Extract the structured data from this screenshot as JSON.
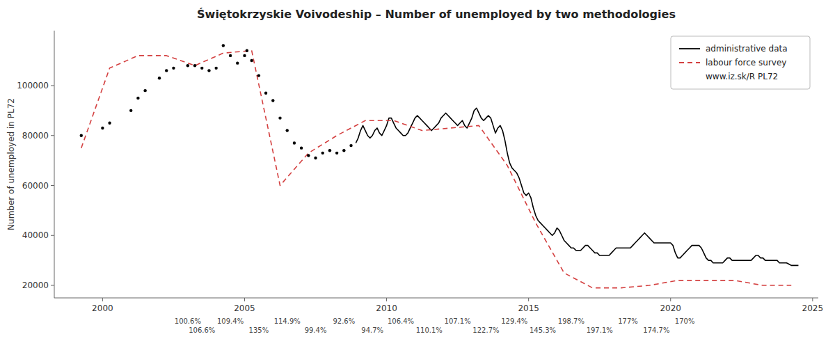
{
  "chart_data": {
    "type": "line",
    "title": "Świętokrzyskie Voivodeship – Number of unemployed  by two methodologies",
    "y_label": "Number of unemployed in PL72",
    "xlim": [
      1998.3,
      2025.2
    ],
    "ylim": [
      15000,
      122000
    ],
    "xticks": [
      2000,
      2005,
      2010,
      2015,
      2020,
      2025
    ],
    "yticks": [
      20000,
      40000,
      60000,
      80000,
      100000
    ],
    "grid": false,
    "legend": "upper right",
    "legend_note": "www.iz.sk/R PL72",
    "series": [
      {
        "type": "scatter",
        "marker": "circle",
        "color": "black",
        "x": [
          1999.25,
          2000.0,
          2000.25,
          2001.0,
          2001.25,
          2001.5,
          2002.0,
          2002.25,
          2002.5,
          2003.0,
          2003.25,
          2003.5,
          2003.75,
          2004.0,
          2004.25,
          2004.5,
          2004.75,
          2005.0,
          2005.083,
          2005.25,
          2005.5,
          2005.75,
          2006.0,
          2006.25,
          2006.5,
          2006.75,
          2007.0,
          2007.25,
          2007.5,
          2007.75,
          2008.0,
          2008.25,
          2008.5,
          2008.75
        ],
        "values": [
          80000,
          83000,
          85000,
          90000,
          95000,
          98000,
          103000,
          106000,
          107000,
          108000,
          108000,
          107000,
          106000,
          107000,
          116000,
          112000,
          109000,
          112000,
          114000,
          110000,
          104000,
          97000,
          94000,
          87000,
          82000,
          77000,
          75000,
          72000,
          71000,
          73000,
          74000,
          73000,
          74000,
          76000
        ]
      },
      {
        "type": "line",
        "name": "administrative data",
        "color": "black",
        "line_style": "solid",
        "x": [
          2008.917,
          2009.0,
          2009.083,
          2009.167,
          2009.25,
          2009.333,
          2009.417,
          2009.5,
          2009.583,
          2009.667,
          2009.75,
          2009.833,
          2009.917,
          2010.0,
          2010.083,
          2010.167,
          2010.25,
          2010.333,
          2010.417,
          2010.5,
          2010.583,
          2010.667,
          2010.75,
          2010.833,
          2010.917,
          2011.0,
          2011.083,
          2011.167,
          2011.25,
          2011.333,
          2011.417,
          2011.5,
          2011.583,
          2011.667,
          2011.75,
          2011.833,
          2011.917,
          2012.0,
          2012.083,
          2012.167,
          2012.25,
          2012.333,
          2012.417,
          2012.5,
          2012.583,
          2012.667,
          2012.75,
          2012.833,
          2012.917,
          2013.0,
          2013.083,
          2013.167,
          2013.25,
          2013.333,
          2013.417,
          2013.5,
          2013.583,
          2013.667,
          2013.75,
          2013.833,
          2013.917,
          2014.0,
          2014.083,
          2014.167,
          2014.25,
          2014.333,
          2014.417,
          2014.5,
          2014.583,
          2014.667,
          2014.75,
          2014.833,
          2014.917,
          2015.0,
          2015.083,
          2015.167,
          2015.25,
          2015.333,
          2015.417,
          2015.5,
          2015.583,
          2015.667,
          2015.75,
          2015.833,
          2015.917,
          2016.0,
          2016.083,
          2016.167,
          2016.25,
          2016.333,
          2016.417,
          2016.5,
          2016.583,
          2016.667,
          2016.75,
          2016.833,
          2016.917,
          2017.0,
          2017.083,
          2017.167,
          2017.25,
          2017.333,
          2017.417,
          2017.5,
          2017.583,
          2017.667,
          2017.75,
          2017.833,
          2017.917,
          2018.0,
          2018.083,
          2018.167,
          2018.25,
          2018.333,
          2018.417,
          2018.5,
          2018.583,
          2018.667,
          2018.75,
          2018.833,
          2018.917,
          2019.0,
          2019.083,
          2019.167,
          2019.25,
          2019.333,
          2019.417,
          2019.5,
          2019.583,
          2019.667,
          2019.75,
          2019.833,
          2019.917,
          2020.0,
          2020.083,
          2020.167,
          2020.25,
          2020.333,
          2020.417,
          2020.5,
          2020.583,
          2020.667,
          2020.75,
          2020.833,
          2020.917,
          2021.0,
          2021.083,
          2021.167,
          2021.25,
          2021.333,
          2021.417,
          2021.5,
          2021.583,
          2021.667,
          2021.75,
          2021.833,
          2021.917,
          2022.0,
          2022.083,
          2022.167,
          2022.25,
          2022.333,
          2022.417,
          2022.5,
          2022.583,
          2022.667,
          2022.75,
          2022.833,
          2022.917,
          2023.0,
          2023.083,
          2023.167,
          2023.25,
          2023.333,
          2023.417,
          2023.5,
          2023.583,
          2023.667,
          2023.75,
          2023.833,
          2023.917,
          2024.0,
          2024.083,
          2024.167,
          2024.25,
          2024.333,
          2024.417,
          2024.5
        ],
        "values": [
          77000,
          79000,
          82000,
          84000,
          82000,
          80000,
          79000,
          80000,
          82000,
          83000,
          81000,
          80000,
          82000,
          84000,
          87000,
          87000,
          85000,
          83000,
          82000,
          81000,
          80000,
          80000,
          81000,
          83000,
          85000,
          87000,
          88000,
          87000,
          86000,
          85000,
          84000,
          83000,
          82000,
          83000,
          84000,
          85000,
          87000,
          88000,
          89000,
          88000,
          87000,
          86000,
          85000,
          84000,
          85000,
          86000,
          84000,
          83000,
          85000,
          87000,
          90000,
          91000,
          89000,
          87000,
          86000,
          87000,
          88000,
          87000,
          84000,
          81000,
          83000,
          84000,
          82000,
          78000,
          73000,
          69000,
          67000,
          66000,
          65000,
          63000,
          60000,
          57000,
          56000,
          57000,
          55000,
          51000,
          48000,
          46000,
          45000,
          44000,
          43000,
          42000,
          41000,
          40000,
          41000,
          43000,
          42000,
          40000,
          38000,
          37000,
          36000,
          35000,
          35000,
          34000,
          34000,
          34000,
          35000,
          36000,
          36000,
          35000,
          34000,
          33000,
          33000,
          32000,
          32000,
          32000,
          32000,
          32000,
          33000,
          34000,
          35000,
          35000,
          35000,
          35000,
          35000,
          35000,
          35000,
          36000,
          37000,
          38000,
          39000,
          40000,
          41000,
          40000,
          39000,
          38000,
          37000,
          37000,
          37000,
          37000,
          37000,
          37000,
          37000,
          37000,
          36000,
          33000,
          31000,
          31000,
          32000,
          33000,
          34000,
          35000,
          36000,
          36000,
          36000,
          36000,
          35000,
          33000,
          31000,
          30000,
          30000,
          29000,
          29000,
          29000,
          29000,
          29000,
          30000,
          31000,
          31000,
          30000,
          30000,
          30000,
          30000,
          30000,
          30000,
          30000,
          30000,
          30000,
          31000,
          32000,
          32000,
          31000,
          31000,
          30000,
          30000,
          30000,
          30000,
          30000,
          30000,
          29000,
          29000,
          29000,
          29000,
          28500,
          28000,
          28000,
          28000,
          28000
        ]
      },
      {
        "type": "line",
        "name": "labour force survey",
        "color": "#d44040",
        "line_style": "dashed",
        "x": [
          1999.25,
          2000.25,
          2001.25,
          2002.25,
          2003.25,
          2004.25,
          2005.25,
          2006.25,
          2007.25,
          2008.25,
          2009.25,
          2010.25,
          2011.25,
          2012.25,
          2013.25,
          2014.25,
          2015.25,
          2016.25,
          2017.25,
          2018.25,
          2019.25,
          2020.25,
          2021.25,
          2022.25,
          2023.25,
          2024.25
        ],
        "values": [
          75000,
          107000,
          112000,
          112000,
          108000,
          113000,
          114000,
          60000,
          73000,
          80000,
          86000,
          86000,
          82000,
          83000,
          84000,
          68000,
          45000,
          25000,
          19000,
          19000,
          20000,
          22000,
          22000,
          22000,
          20000,
          20000
        ]
      }
    ],
    "annotations": [
      {
        "x": 2003.0,
        "text": "100.6%"
      },
      {
        "x": 2003.5,
        "text": "106.6%"
      },
      {
        "x": 2004.5,
        "text": "109.4%"
      },
      {
        "x": 2005.5,
        "text": "135%"
      },
      {
        "x": 2006.5,
        "text": "114.9%"
      },
      {
        "x": 2007.5,
        "text": "99.4%"
      },
      {
        "x": 2008.5,
        "text": "92.6%"
      },
      {
        "x": 2009.5,
        "text": "94.7%"
      },
      {
        "x": 2010.5,
        "text": "106.4%"
      },
      {
        "x": 2011.5,
        "text": "110.1%"
      },
      {
        "x": 2012.5,
        "text": "107.1%"
      },
      {
        "x": 2013.5,
        "text": "122.7%"
      },
      {
        "x": 2014.5,
        "text": "129.4%"
      },
      {
        "x": 2015.5,
        "text": "145.3%"
      },
      {
        "x": 2016.5,
        "text": "198.7%"
      },
      {
        "x": 2017.5,
        "text": "197.1%"
      },
      {
        "x": 2018.5,
        "text": "177%"
      },
      {
        "x": 2019.5,
        "text": "174.7%"
      },
      {
        "x": 2020.5,
        "text": "170%"
      }
    ]
  }
}
